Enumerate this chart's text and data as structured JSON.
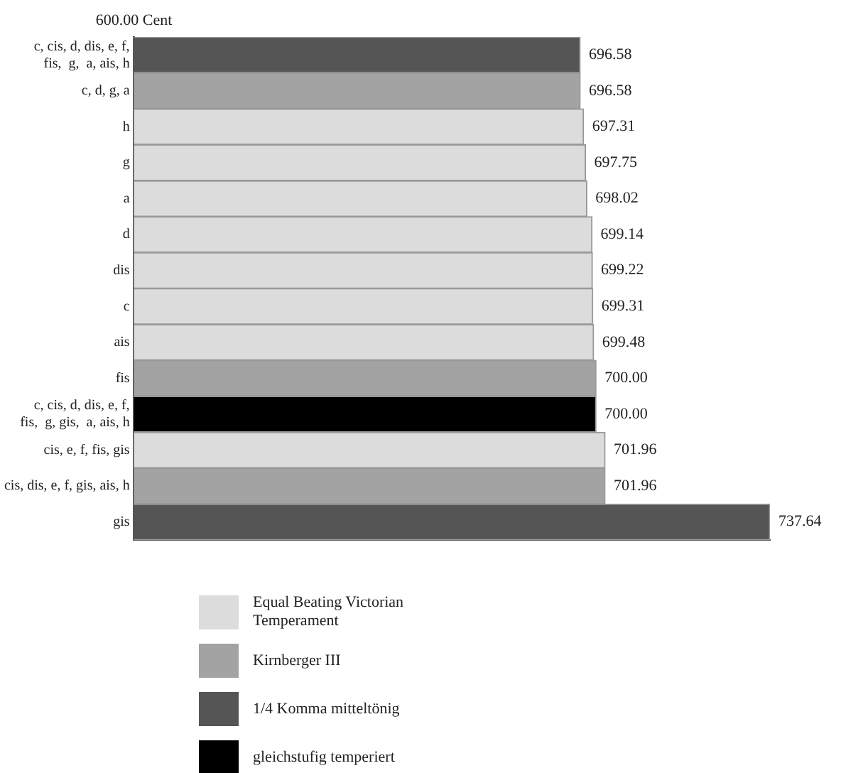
{
  "chart_data": {
    "type": "bar",
    "orientation": "horizontal",
    "categories": [
      "c, cis, d, dis, e, f,\nfis,  g,  a, ais, h",
      "c, d, g, a",
      "h",
      "g",
      "a",
      "d",
      "dis",
      "c",
      "ais",
      "fis",
      "c, cis, d, dis, e, f,\nfis,  g, gis,  a, ais, h",
      "cis, e, f, fis, gis",
      "cis, dis, e, f, gis, ais, h",
      "gis"
    ],
    "series": [
      {
        "name": "Equal Beating Victorian Temperament",
        "color": "#dcdcdc",
        "values": [
          null,
          null,
          697.31,
          697.75,
          698.02,
          699.14,
          699.22,
          699.31,
          699.48,
          null,
          null,
          701.96,
          null,
          null
        ],
        "value_labels": [
          null,
          null,
          "697.31",
          "697.75",
          "698.02",
          "699.14",
          "699.22",
          "699.31",
          "699.48",
          null,
          null,
          "701.96",
          null,
          null
        ]
      },
      {
        "name": "Kirnberger III",
        "color": "#a3a3a3",
        "values": [
          null,
          696.58,
          null,
          null,
          null,
          null,
          null,
          null,
          null,
          700.0,
          null,
          null,
          701.96,
          null
        ],
        "value_labels": [
          null,
          "696.58",
          null,
          null,
          null,
          null,
          null,
          null,
          null,
          "700.00",
          null,
          null,
          "701.96",
          null
        ]
      },
      {
        "name": "1/4 Komma mitteltönig",
        "color": "#555555",
        "values": [
          696.58,
          null,
          null,
          null,
          null,
          null,
          null,
          null,
          null,
          null,
          null,
          null,
          null,
          737.64
        ],
        "value_labels": [
          "696.58",
          null,
          null,
          null,
          null,
          null,
          null,
          null,
          null,
          null,
          null,
          null,
          null,
          "737.64"
        ]
      },
      {
        "name": "gleichstufig temperiert",
        "color": "#000000",
        "values": [
          null,
          null,
          null,
          null,
          null,
          null,
          null,
          null,
          null,
          null,
          700.0,
          null,
          null,
          null
        ],
        "value_labels": [
          null,
          null,
          null,
          null,
          null,
          null,
          null,
          null,
          null,
          null,
          "700.00",
          null,
          null,
          null
        ]
      }
    ],
    "xlim": [
      600,
      737.64
    ],
    "annotations": [
      "600.00 Cent"
    ],
    "grid": false,
    "legend": "bottom"
  }
}
